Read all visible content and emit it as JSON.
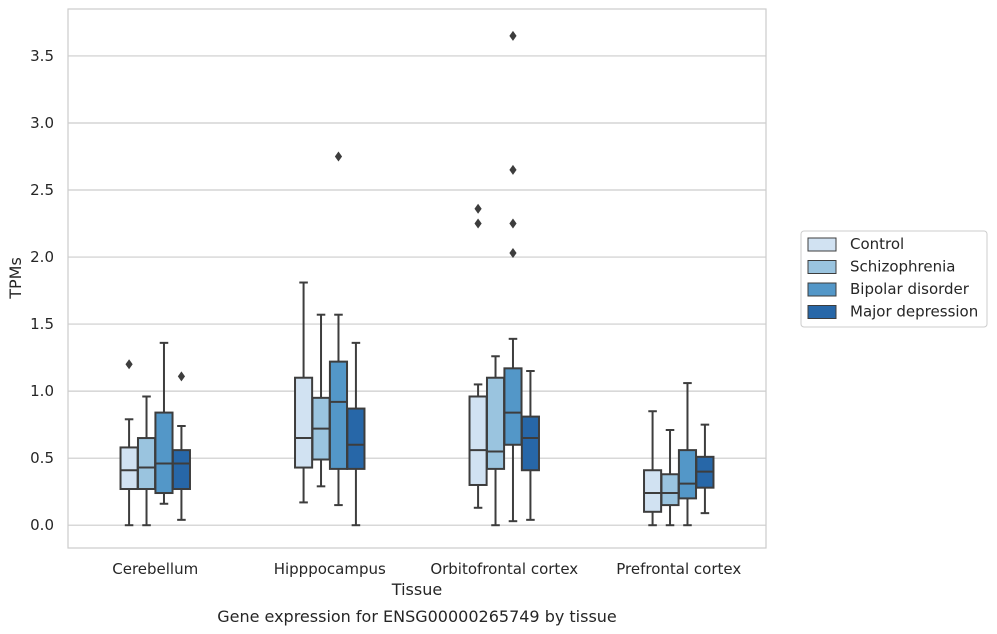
{
  "chart_data": {
    "type": "box",
    "title": "",
    "xlabel": "Tissue",
    "ylabel": "TPMs",
    "caption": "Gene expression for ENSG00000265749 by tissue",
    "ylim": [
      -0.17,
      3.85
    ],
    "yticks": [
      "0.0",
      "0.5",
      "1.0",
      "1.5",
      "2.0",
      "2.5",
      "3.0",
      "3.5"
    ],
    "ytick_values": [
      0.0,
      0.5,
      1.0,
      1.5,
      2.0,
      2.5,
      3.0,
      3.5
    ],
    "grid": "horizontal",
    "legend_position": "right",
    "categories": [
      "Cerebellum",
      "Hipppocampus",
      "Orbitofrontal cortex",
      "Prefrontal cortex"
    ],
    "series": [
      {
        "name": "Control",
        "color": "#d1e2f2",
        "boxes": [
          {
            "whislo": 0.0,
            "q1": 0.27,
            "med": 0.41,
            "q3": 0.58,
            "whishi": 0.79,
            "fliers": [
              1.2
            ]
          },
          {
            "whislo": 0.17,
            "q1": 0.43,
            "med": 0.65,
            "q3": 1.1,
            "whishi": 1.81,
            "fliers": []
          },
          {
            "whislo": 0.13,
            "q1": 0.3,
            "med": 0.56,
            "q3": 0.96,
            "whishi": 1.05,
            "fliers": [
              2.25,
              2.36
            ]
          },
          {
            "whislo": 0.0,
            "q1": 0.1,
            "med": 0.24,
            "q3": 0.41,
            "whishi": 0.85,
            "fliers": []
          }
        ]
      },
      {
        "name": "Schizophrenia",
        "color": "#9ac4df",
        "boxes": [
          {
            "whislo": 0.0,
            "q1": 0.27,
            "med": 0.43,
            "q3": 0.65,
            "whishi": 0.96,
            "fliers": []
          },
          {
            "whislo": 0.29,
            "q1": 0.49,
            "med": 0.72,
            "q3": 0.95,
            "whishi": 1.57,
            "fliers": []
          },
          {
            "whislo": 0.0,
            "q1": 0.42,
            "med": 0.55,
            "q3": 1.1,
            "whishi": 1.26,
            "fliers": []
          },
          {
            "whislo": 0.0,
            "q1": 0.15,
            "med": 0.24,
            "q3": 0.38,
            "whishi": 0.71,
            "fliers": []
          }
        ]
      },
      {
        "name": "Bipolar disorder",
        "color": "#5397c8",
        "boxes": [
          {
            "whislo": 0.16,
            "q1": 0.24,
            "med": 0.46,
            "q3": 0.84,
            "whishi": 1.36,
            "fliers": []
          },
          {
            "whislo": 0.15,
            "q1": 0.42,
            "med": 0.92,
            "q3": 1.22,
            "whishi": 1.57,
            "fliers": [
              2.75
            ]
          },
          {
            "whislo": 0.03,
            "q1": 0.6,
            "med": 0.84,
            "q3": 1.17,
            "whishi": 1.39,
            "fliers": [
              3.65,
              2.65,
              2.25,
              2.03
            ]
          },
          {
            "whislo": 0.0,
            "q1": 0.2,
            "med": 0.31,
            "q3": 0.56,
            "whishi": 1.06,
            "fliers": []
          }
        ]
      },
      {
        "name": "Major depression",
        "color": "#2767a8",
        "boxes": [
          {
            "whislo": 0.04,
            "q1": 0.27,
            "med": 0.46,
            "q3": 0.56,
            "whishi": 0.74,
            "fliers": [
              1.11
            ]
          },
          {
            "whislo": 0.0,
            "q1": 0.42,
            "med": 0.6,
            "q3": 0.87,
            "whishi": 1.36,
            "fliers": []
          },
          {
            "whislo": 0.04,
            "q1": 0.41,
            "med": 0.65,
            "q3": 0.81,
            "whishi": 1.15,
            "fliers": []
          },
          {
            "whislo": 0.09,
            "q1": 0.28,
            "med": 0.4,
            "q3": 0.51,
            "whishi": 0.75,
            "fliers": []
          }
        ]
      }
    ]
  }
}
